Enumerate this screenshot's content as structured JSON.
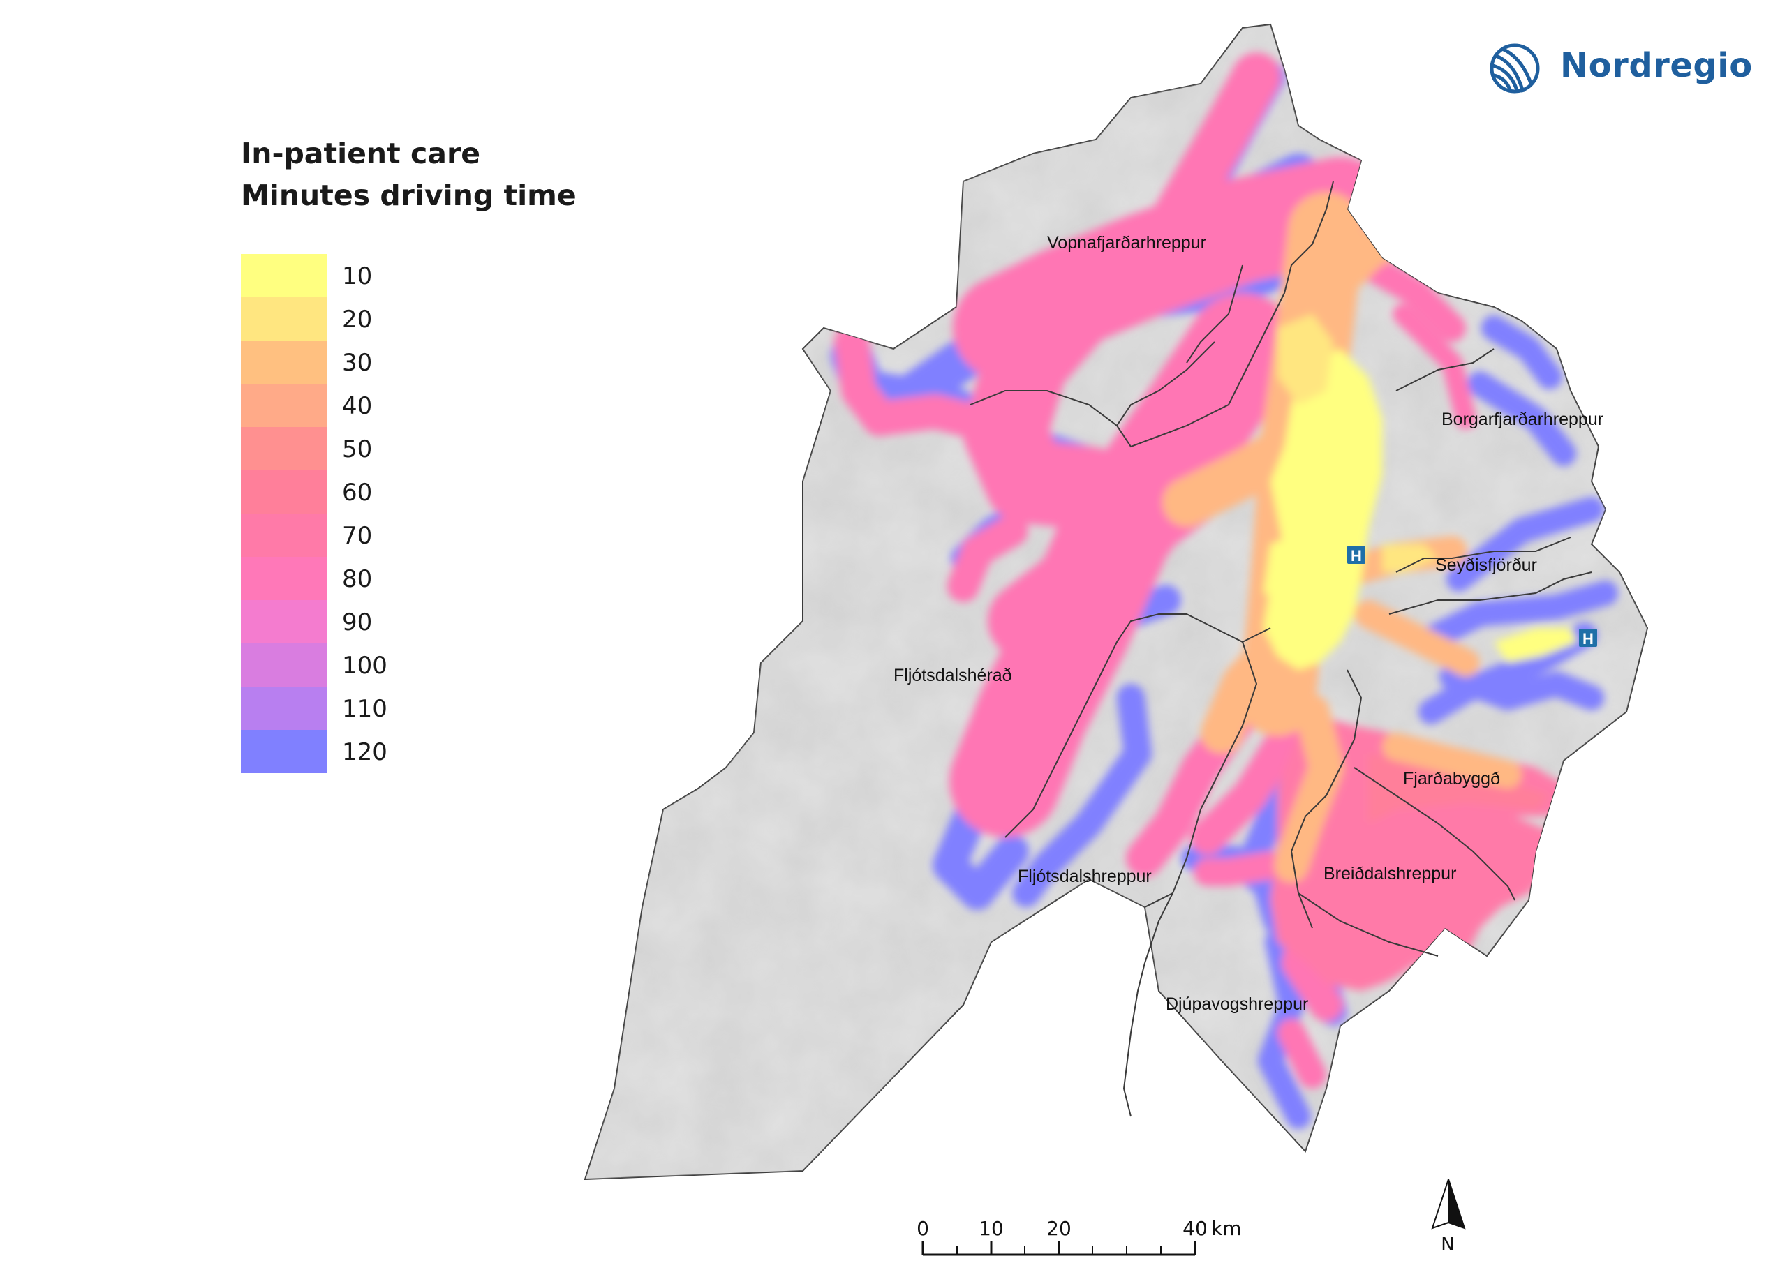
{
  "logo": {
    "text": "Nordregio",
    "icon": "nordregio-globe-icon",
    "color": "#1f5f9e"
  },
  "legend": {
    "title_line1": "In-patient care",
    "title_line2": "Minutes driving time",
    "classes": [
      {
        "label": "10",
        "color": "#ffff80"
      },
      {
        "label": "20",
        "color": "#ffe680"
      },
      {
        "label": "30",
        "color": "#ffc080"
      },
      {
        "label": "40",
        "color": "#ffaa88"
      },
      {
        "label": "50",
        "color": "#ff9090"
      },
      {
        "label": "60",
        "color": "#ff7f9a"
      },
      {
        "label": "70",
        "color": "#ff7aa8"
      },
      {
        "label": "80",
        "color": "#ff78b8"
      },
      {
        "label": "90",
        "color": "#f47ccf"
      },
      {
        "label": "100",
        "color": "#d97de0"
      },
      {
        "label": "110",
        "color": "#b87ff0"
      },
      {
        "label": "120",
        "color": "#8080ff"
      }
    ]
  },
  "regions": {
    "vopnafjordur": "Vopnafjarðarhreppur",
    "borgarfjordur": "Borgarfjarðarhreppur",
    "seydisfjordur": "Seyðisfjörður",
    "fljotsdalsherad": "Fljótsdalshérað",
    "fjardabyggd": "Fjarðabyggð",
    "fljotsdalshreppur": "Fljótsdalshreppur",
    "breiddalshreppur": "Breiðdalshreppur",
    "djupavogshreppur": "Djúpavogshreppur"
  },
  "hospitals": [
    {
      "icon": "hospital-icon",
      "label": "H"
    },
    {
      "icon": "hospital-icon",
      "label": "H"
    }
  ],
  "scale_bar": {
    "ticks": [
      "0",
      "10",
      "20",
      "40"
    ],
    "unit": "km"
  },
  "north_arrow": {
    "label": "N"
  },
  "colors": {
    "land": "#e2e2e2",
    "boundary": "#3a3a3a",
    "hospital": "#1f6fa8"
  }
}
